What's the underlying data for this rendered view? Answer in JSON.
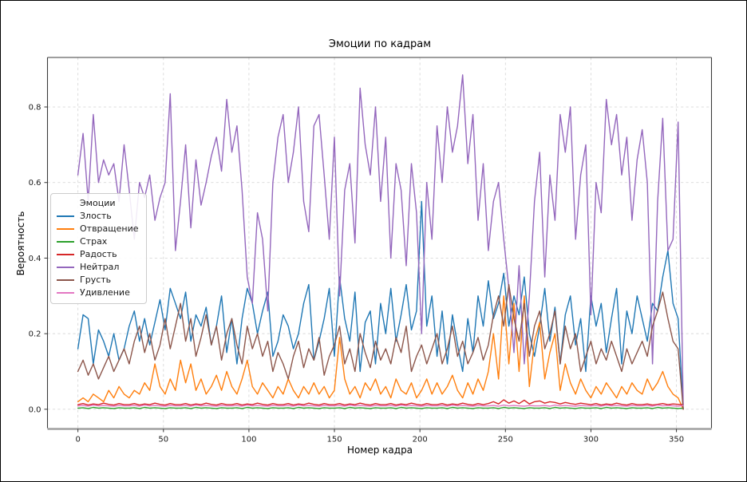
{
  "chart_data": {
    "type": "line",
    "title": "Эмоции по кадрам",
    "xlabel": "Номер кадра",
    "ylabel": "Вероятность",
    "legend_title": "Эмоции",
    "legend_position": "center-left",
    "grid": true,
    "grid_style": "dashed",
    "grid_color": "#d9d9d9",
    "xlim": [
      -17.8,
      370.5
    ],
    "ylim": [
      -0.05,
      0.931
    ],
    "xticks": [
      0,
      50,
      100,
      150,
      200,
      250,
      300,
      350
    ],
    "yticks": [
      0.0,
      0.2,
      0.4,
      0.6,
      0.8
    ],
    "x_start": 0,
    "x_step": 3,
    "series": [
      {
        "name": "Злость",
        "color": "#1f77b4",
        "values": [
          0.16,
          0.25,
          0.24,
          0.12,
          0.21,
          0.18,
          0.14,
          0.2,
          0.13,
          0.16,
          0.22,
          0.26,
          0.18,
          0.24,
          0.17,
          0.23,
          0.29,
          0.21,
          0.32,
          0.28,
          0.24,
          0.31,
          0.18,
          0.25,
          0.22,
          0.27,
          0.17,
          0.22,
          0.3,
          0.15,
          0.24,
          0.12,
          0.24,
          0.32,
          0.28,
          0.2,
          0.26,
          0.31,
          0.14,
          0.18,
          0.25,
          0.22,
          0.16,
          0.2,
          0.28,
          0.33,
          0.13,
          0.18,
          0.24,
          0.32,
          0.14,
          0.35,
          0.24,
          0.18,
          0.31,
          0.1,
          0.23,
          0.26,
          0.12,
          0.28,
          0.2,
          0.32,
          0.18,
          0.25,
          0.33,
          0.21,
          0.26,
          0.55,
          0.22,
          0.3,
          0.14,
          0.26,
          0.12,
          0.25,
          0.17,
          0.1,
          0.24,
          0.15,
          0.3,
          0.22,
          0.34,
          0.24,
          0.28,
          0.36,
          0.22,
          0.3,
          0.25,
          0.35,
          0.2,
          0.14,
          0.22,
          0.32,
          0.18,
          0.27,
          0.12,
          0.25,
          0.3,
          0.17,
          0.24,
          0.1,
          0.3,
          0.22,
          0.28,
          0.15,
          0.24,
          0.32,
          0.12,
          0.26,
          0.2,
          0.3,
          0.24,
          0.18,
          0.28,
          0.26,
          0.35,
          0.42,
          0.28,
          0.24,
          0.0
        ]
      },
      {
        "name": "Отвращение",
        "color": "#ff7f0e",
        "values": [
          0.02,
          0.03,
          0.02,
          0.04,
          0.03,
          0.02,
          0.05,
          0.03,
          0.06,
          0.04,
          0.03,
          0.05,
          0.04,
          0.07,
          0.05,
          0.12,
          0.06,
          0.04,
          0.08,
          0.05,
          0.13,
          0.07,
          0.12,
          0.05,
          0.08,
          0.04,
          0.06,
          0.09,
          0.05,
          0.1,
          0.06,
          0.04,
          0.08,
          0.13,
          0.06,
          0.04,
          0.07,
          0.05,
          0.03,
          0.06,
          0.04,
          0.08,
          0.05,
          0.03,
          0.06,
          0.04,
          0.07,
          0.04,
          0.06,
          0.03,
          0.05,
          0.19,
          0.08,
          0.04,
          0.06,
          0.03,
          0.07,
          0.05,
          0.08,
          0.04,
          0.06,
          0.03,
          0.08,
          0.05,
          0.04,
          0.07,
          0.03,
          0.05,
          0.08,
          0.04,
          0.07,
          0.04,
          0.06,
          0.09,
          0.05,
          0.03,
          0.07,
          0.04,
          0.08,
          0.05,
          0.1,
          0.2,
          0.08,
          0.3,
          0.12,
          0.28,
          0.1,
          0.3,
          0.06,
          0.18,
          0.23,
          0.08,
          0.15,
          0.2,
          0.05,
          0.12,
          0.07,
          0.04,
          0.08,
          0.05,
          0.03,
          0.06,
          0.04,
          0.07,
          0.05,
          0.03,
          0.06,
          0.04,
          0.07,
          0.05,
          0.04,
          0.08,
          0.05,
          0.07,
          0.1,
          0.06,
          0.04,
          0.03,
          0.0
        ]
      },
      {
        "name": "Страх",
        "color": "#2ca02c",
        "values": [
          0.003,
          0.004,
          0.002,
          0.005,
          0.003,
          0.004,
          0.003,
          0.002,
          0.004,
          0.003,
          0.003,
          0.004,
          0.002,
          0.005,
          0.003,
          0.004,
          0.003,
          0.002,
          0.004,
          0.003,
          0.003,
          0.004,
          0.002,
          0.005,
          0.003,
          0.004,
          0.003,
          0.002,
          0.004,
          0.003,
          0.003,
          0.004,
          0.002,
          0.005,
          0.003,
          0.004,
          0.003,
          0.002,
          0.004,
          0.003,
          0.003,
          0.004,
          0.002,
          0.005,
          0.003,
          0.004,
          0.003,
          0.002,
          0.004,
          0.003,
          0.003,
          0.004,
          0.002,
          0.005,
          0.003,
          0.004,
          0.003,
          0.002,
          0.004,
          0.003,
          0.003,
          0.004,
          0.002,
          0.005,
          0.003,
          0.004,
          0.003,
          0.002,
          0.004,
          0.003,
          0.003,
          0.004,
          0.002,
          0.005,
          0.003,
          0.004,
          0.003,
          0.002,
          0.004,
          0.003,
          0.003,
          0.004,
          0.002,
          0.005,
          0.003,
          0.004,
          0.003,
          0.002,
          0.004,
          0.003,
          0.003,
          0.004,
          0.002,
          0.005,
          0.003,
          0.004,
          0.003,
          0.002,
          0.004,
          0.003,
          0.003,
          0.004,
          0.002,
          0.005,
          0.003,
          0.004,
          0.003,
          0.002,
          0.004,
          0.003,
          0.003,
          0.004,
          0.002,
          0.005,
          0.003,
          0.004,
          0.003,
          0.002,
          0.003
        ]
      },
      {
        "name": "Радость",
        "color": "#d62728",
        "values": [
          0.012,
          0.015,
          0.011,
          0.014,
          0.012,
          0.016,
          0.013,
          0.011,
          0.015,
          0.012,
          0.012,
          0.015,
          0.011,
          0.014,
          0.012,
          0.016,
          0.013,
          0.011,
          0.015,
          0.012,
          0.012,
          0.015,
          0.011,
          0.014,
          0.012,
          0.016,
          0.013,
          0.011,
          0.015,
          0.012,
          0.012,
          0.015,
          0.011,
          0.014,
          0.012,
          0.016,
          0.013,
          0.011,
          0.015,
          0.012,
          0.012,
          0.015,
          0.011,
          0.014,
          0.012,
          0.016,
          0.013,
          0.011,
          0.015,
          0.012,
          0.012,
          0.015,
          0.011,
          0.014,
          0.012,
          0.016,
          0.013,
          0.011,
          0.015,
          0.012,
          0.012,
          0.015,
          0.011,
          0.014,
          0.012,
          0.016,
          0.013,
          0.011,
          0.015,
          0.012,
          0.012,
          0.015,
          0.011,
          0.014,
          0.012,
          0.016,
          0.013,
          0.011,
          0.015,
          0.012,
          0.015,
          0.02,
          0.014,
          0.025,
          0.016,
          0.022,
          0.015,
          0.024,
          0.014,
          0.02,
          0.022,
          0.016,
          0.02,
          0.018,
          0.014,
          0.018,
          0.015,
          0.013,
          0.016,
          0.014,
          0.012,
          0.015,
          0.011,
          0.014,
          0.012,
          0.016,
          0.013,
          0.011,
          0.015,
          0.012,
          0.012,
          0.014,
          0.011,
          0.013,
          0.015,
          0.012,
          0.014,
          0.013,
          0.012
        ]
      },
      {
        "name": "Нейтрал",
        "color": "#9467bd",
        "values": [
          0.62,
          0.73,
          0.55,
          0.78,
          0.6,
          0.66,
          0.62,
          0.65,
          0.55,
          0.7,
          0.58,
          0.45,
          0.6,
          0.56,
          0.62,
          0.5,
          0.56,
          0.6,
          0.835,
          0.42,
          0.55,
          0.7,
          0.48,
          0.66,
          0.54,
          0.6,
          0.67,
          0.72,
          0.63,
          0.82,
          0.68,
          0.75,
          0.58,
          0.35,
          0.28,
          0.52,
          0.45,
          0.26,
          0.6,
          0.72,
          0.78,
          0.6,
          0.68,
          0.8,
          0.55,
          0.47,
          0.75,
          0.78,
          0.62,
          0.45,
          0.72,
          0.3,
          0.58,
          0.65,
          0.44,
          0.85,
          0.7,
          0.62,
          0.8,
          0.55,
          0.72,
          0.4,
          0.65,
          0.58,
          0.38,
          0.65,
          0.52,
          0.2,
          0.6,
          0.45,
          0.75,
          0.6,
          0.8,
          0.68,
          0.75,
          0.885,
          0.65,
          0.78,
          0.5,
          0.65,
          0.42,
          0.55,
          0.6,
          0.45,
          0.32,
          0.15,
          0.38,
          0.12,
          0.3,
          0.55,
          0.68,
          0.35,
          0.62,
          0.5,
          0.78,
          0.68,
          0.8,
          0.45,
          0.62,
          0.7,
          0.25,
          0.6,
          0.52,
          0.82,
          0.7,
          0.78,
          0.62,
          0.72,
          0.5,
          0.66,
          0.74,
          0.6,
          0.12,
          0.55,
          0.77,
          0.42,
          0.45,
          0.76,
          0.01
        ]
      },
      {
        "name": "Грусть",
        "color": "#8c564b",
        "values": [
          0.1,
          0.13,
          0.09,
          0.12,
          0.08,
          0.11,
          0.14,
          0.1,
          0.13,
          0.16,
          0.12,
          0.18,
          0.22,
          0.15,
          0.2,
          0.13,
          0.17,
          0.24,
          0.16,
          0.22,
          0.28,
          0.18,
          0.24,
          0.14,
          0.19,
          0.25,
          0.17,
          0.22,
          0.13,
          0.2,
          0.24,
          0.17,
          0.12,
          0.22,
          0.16,
          0.2,
          0.14,
          0.18,
          0.1,
          0.15,
          0.12,
          0.08,
          0.14,
          0.18,
          0.11,
          0.16,
          0.13,
          0.19,
          0.09,
          0.14,
          0.17,
          0.22,
          0.12,
          0.16,
          0.1,
          0.2,
          0.15,
          0.11,
          0.18,
          0.13,
          0.16,
          0.12,
          0.19,
          0.15,
          0.22,
          0.1,
          0.14,
          0.17,
          0.12,
          0.16,
          0.2,
          0.12,
          0.16,
          0.22,
          0.14,
          0.18,
          0.12,
          0.15,
          0.19,
          0.13,
          0.17,
          0.25,
          0.3,
          0.22,
          0.33,
          0.24,
          0.18,
          0.28,
          0.14,
          0.22,
          0.26,
          0.16,
          0.2,
          0.26,
          0.12,
          0.22,
          0.16,
          0.2,
          0.1,
          0.14,
          0.18,
          0.12,
          0.16,
          0.13,
          0.18,
          0.14,
          0.1,
          0.16,
          0.12,
          0.15,
          0.18,
          0.14,
          0.22,
          0.26,
          0.31,
          0.24,
          0.18,
          0.16,
          0.0
        ]
      },
      {
        "name": "Удивление",
        "color": "#e377c2",
        "values": [
          0.009,
          0.01,
          0.008,
          0.011,
          0.009,
          0.01,
          0.009,
          0.008,
          0.01,
          0.009,
          0.009,
          0.01,
          0.008,
          0.011,
          0.009,
          0.01,
          0.009,
          0.008,
          0.01,
          0.009,
          0.009,
          0.01,
          0.008,
          0.011,
          0.009,
          0.01,
          0.009,
          0.008,
          0.01,
          0.009,
          0.009,
          0.01,
          0.008,
          0.011,
          0.009,
          0.01,
          0.009,
          0.008,
          0.01,
          0.009,
          0.009,
          0.01,
          0.008,
          0.011,
          0.009,
          0.01,
          0.009,
          0.008,
          0.01,
          0.009,
          0.009,
          0.01,
          0.008,
          0.011,
          0.009,
          0.01,
          0.009,
          0.008,
          0.01,
          0.009,
          0.009,
          0.01,
          0.008,
          0.011,
          0.009,
          0.01,
          0.009,
          0.008,
          0.01,
          0.009,
          0.009,
          0.01,
          0.008,
          0.011,
          0.009,
          0.01,
          0.009,
          0.008,
          0.01,
          0.009,
          0.009,
          0.01,
          0.008,
          0.011,
          0.009,
          0.01,
          0.009,
          0.008,
          0.01,
          0.009,
          0.009,
          0.01,
          0.008,
          0.011,
          0.009,
          0.01,
          0.009,
          0.008,
          0.01,
          0.009,
          0.009,
          0.01,
          0.008,
          0.011,
          0.009,
          0.01,
          0.009,
          0.008,
          0.01,
          0.009,
          0.009,
          0.01,
          0.008,
          0.011,
          0.009,
          0.01,
          0.009,
          0.008,
          0.01
        ]
      }
    ]
  }
}
